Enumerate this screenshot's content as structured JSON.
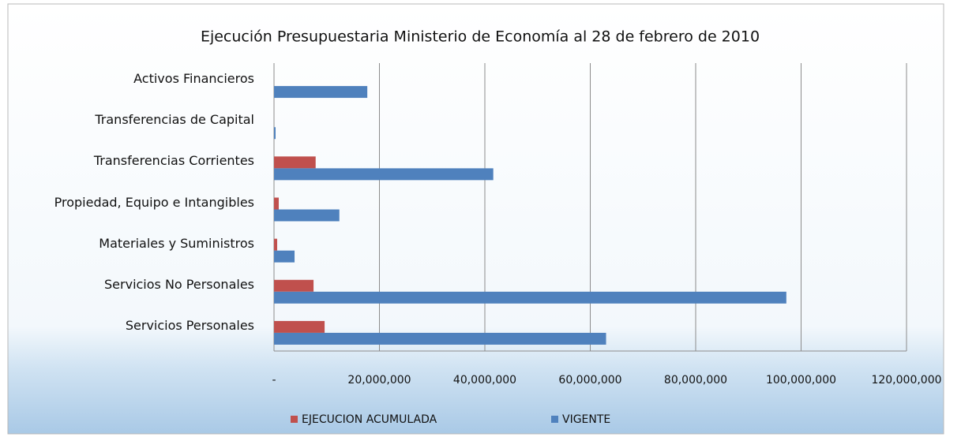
{
  "chart_data": {
    "type": "hbar",
    "title": "Ejecución Presupuestaria Ministerio de Economía al  28 de febrero de  2010",
    "categories": [
      "Activos Financieros",
      "Transferencias de Capital",
      "Transferencias Corrientes",
      "Propiedad, Equipo e Intangibles",
      "Materiales y Suministros",
      "Servicios No Personales",
      "Servicios  Personales"
    ],
    "series": [
      {
        "name": "EJECUCION ACUMULADA",
        "color": "#c0504d",
        "values": [
          0,
          0,
          7900000,
          900000,
          600000,
          7500000,
          9600000
        ]
      },
      {
        "name": "VIGENTE",
        "color": "#4f81bd",
        "values": [
          17700000,
          300000,
          41600000,
          12400000,
          3900000,
          97200000,
          63000000
        ]
      }
    ],
    "xlim": [
      0,
      120000000
    ],
    "xticks": [
      {
        "value": 0,
        "label": "-"
      },
      {
        "value": 20000000,
        "label": "20,000,000"
      },
      {
        "value": 40000000,
        "label": "40,000,000"
      },
      {
        "value": 60000000,
        "label": "60,000,000"
      },
      {
        "value": 80000000,
        "label": "80,000,000"
      },
      {
        "value": 100000000,
        "label": "100,000,000"
      },
      {
        "value": 120000000,
        "label": "120,000,000"
      }
    ],
    "grid": true,
    "legend": "bottom"
  }
}
